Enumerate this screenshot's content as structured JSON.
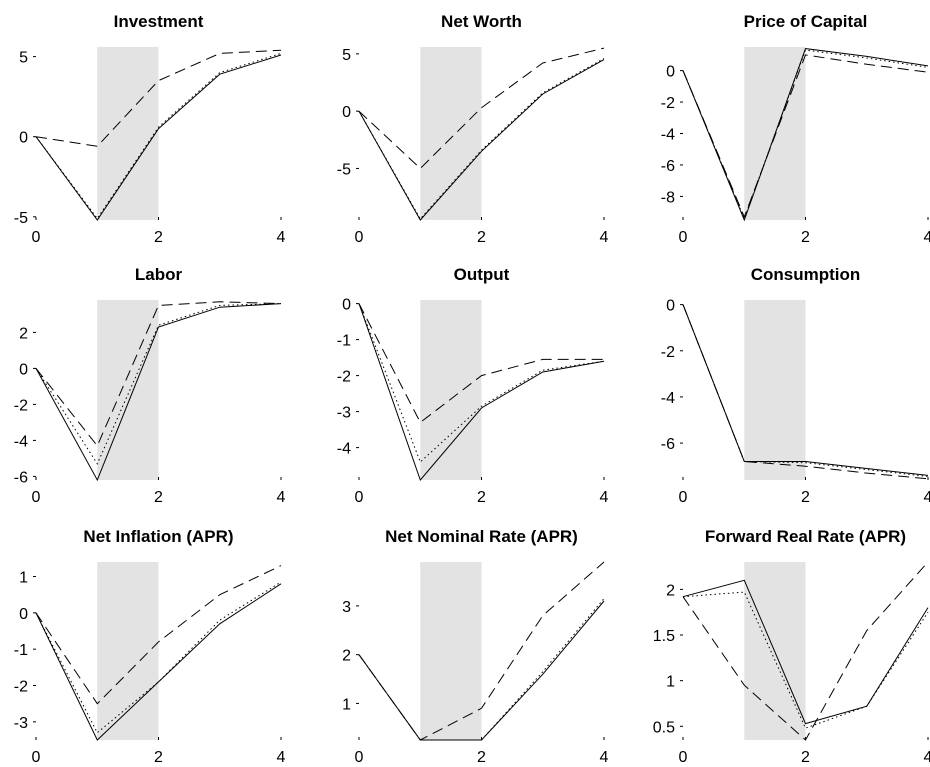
{
  "chart_data": [
    {
      "type": "line",
      "title": "Investment",
      "xlim": [
        0,
        4
      ],
      "ylim": [
        -5.2,
        5.6
      ],
      "xticks": [
        0,
        2,
        4
      ],
      "yticks": [
        -5,
        0,
        5
      ],
      "shade": [
        1,
        2
      ],
      "x": [
        0,
        1,
        2,
        3,
        4
      ],
      "series": [
        {
          "style": "solid",
          "values": [
            0,
            -5.2,
            0.5,
            3.9,
            5.1
          ]
        },
        {
          "style": "dotted",
          "values": [
            0,
            -5.1,
            0.6,
            4.0,
            5.2
          ]
        },
        {
          "style": "dashed",
          "values": [
            0,
            -0.6,
            3.5,
            5.2,
            5.4
          ]
        }
      ]
    },
    {
      "type": "line",
      "title": "Net Worth",
      "xlim": [
        0,
        4
      ],
      "ylim": [
        -9.5,
        5.6
      ],
      "xticks": [
        0,
        2,
        4
      ],
      "yticks": [
        -5,
        0,
        5
      ],
      "shade": [
        1,
        2
      ],
      "x": [
        0,
        1,
        2,
        3,
        4
      ],
      "series": [
        {
          "style": "solid",
          "values": [
            0,
            -9.5,
            -3.5,
            1.5,
            4.5
          ]
        },
        {
          "style": "dotted",
          "values": [
            0,
            -9.4,
            -3.4,
            1.6,
            4.6
          ]
        },
        {
          "style": "dashed",
          "values": [
            0,
            -5.0,
            0.3,
            4.2,
            5.5
          ]
        }
      ]
    },
    {
      "type": "line",
      "title": "Price of Capital",
      "xlim": [
        0,
        4
      ],
      "ylim": [
        -9.5,
        1.5
      ],
      "xticks": [
        0,
        2,
        4
      ],
      "yticks": [
        -8,
        -6,
        -4,
        -2,
        0
      ],
      "shade": [
        1,
        2
      ],
      "x": [
        0,
        1,
        2,
        3,
        4
      ],
      "series": [
        {
          "style": "solid",
          "values": [
            0,
            -9.5,
            1.4,
            0.9,
            0.3
          ]
        },
        {
          "style": "dotted",
          "values": [
            0,
            -9.4,
            1.3,
            0.8,
            0.2
          ]
        },
        {
          "style": "dashed",
          "values": [
            0,
            -9.3,
            1.0,
            0.4,
            -0.1
          ]
        }
      ]
    },
    {
      "type": "line",
      "title": "Labor",
      "xlim": [
        0,
        4
      ],
      "ylim": [
        -6.2,
        3.8
      ],
      "xticks": [
        0,
        2,
        4
      ],
      "yticks": [
        -6,
        -4,
        -2,
        0,
        2
      ],
      "shade": [
        1,
        2
      ],
      "x": [
        0,
        1,
        2,
        3,
        4
      ],
      "series": [
        {
          "style": "solid",
          "values": [
            0,
            -6.2,
            2.3,
            3.4,
            3.6
          ]
        },
        {
          "style": "dotted",
          "values": [
            0,
            -5.3,
            2.4,
            3.5,
            3.6
          ]
        },
        {
          "style": "dashed",
          "values": [
            0,
            -4.3,
            3.5,
            3.7,
            3.6
          ]
        }
      ]
    },
    {
      "type": "line",
      "title": "Output",
      "xlim": [
        0,
        4
      ],
      "ylim": [
        -4.9,
        0.1
      ],
      "xticks": [
        0,
        2,
        4
      ],
      "yticks": [
        -4,
        -3,
        -2,
        -1,
        0
      ],
      "shade": [
        1,
        2
      ],
      "x": [
        0,
        1,
        2,
        3,
        4
      ],
      "series": [
        {
          "style": "solid",
          "values": [
            0,
            -4.9,
            -2.9,
            -1.9,
            -1.6
          ]
        },
        {
          "style": "dotted",
          "values": [
            0,
            -4.4,
            -2.85,
            -1.85,
            -1.6
          ]
        },
        {
          "style": "dashed",
          "values": [
            0,
            -3.3,
            -2.0,
            -1.55,
            -1.55
          ]
        }
      ]
    },
    {
      "type": "line",
      "title": "Consumption",
      "xlim": [
        0,
        4
      ],
      "ylim": [
        -7.6,
        0.2
      ],
      "xticks": [
        0,
        2,
        4
      ],
      "yticks": [
        -6,
        -4,
        -2,
        0
      ],
      "shade": [
        1,
        2
      ],
      "x": [
        0,
        1,
        2,
        3,
        4
      ],
      "series": [
        {
          "style": "solid",
          "values": [
            0,
            -6.8,
            -6.8,
            -7.1,
            -7.4
          ]
        },
        {
          "style": "dotted",
          "values": [
            0,
            -6.8,
            -6.85,
            -7.15,
            -7.45
          ]
        },
        {
          "style": "dashed",
          "values": [
            0,
            -6.8,
            -7.0,
            -7.3,
            -7.55
          ]
        }
      ]
    },
    {
      "type": "line",
      "title": "Net Inflation (APR)",
      "xlim": [
        0,
        4
      ],
      "ylim": [
        -3.5,
        1.4
      ],
      "xticks": [
        0,
        2,
        4
      ],
      "yticks": [
        -3,
        -2,
        -1,
        0,
        1
      ],
      "shade": [
        1,
        2
      ],
      "x": [
        0,
        1,
        2,
        3,
        4
      ],
      "series": [
        {
          "style": "solid",
          "values": [
            0,
            -3.5,
            -1.9,
            -0.3,
            0.8
          ]
        },
        {
          "style": "dotted",
          "values": [
            0,
            -3.3,
            -1.9,
            -0.2,
            0.85
          ]
        },
        {
          "style": "dashed",
          "values": [
            0,
            -2.5,
            -0.8,
            0.5,
            1.3
          ]
        }
      ]
    },
    {
      "type": "line",
      "title": "Net Nominal Rate (APR)",
      "xlim": [
        0,
        4
      ],
      "ylim": [
        0.25,
        3.9
      ],
      "xticks": [
        0,
        2,
        4
      ],
      "yticks": [
        1,
        2,
        3
      ],
      "shade": [
        1,
        2
      ],
      "x": [
        0,
        1,
        2,
        3,
        4
      ],
      "series": [
        {
          "style": "solid",
          "values": [
            2.0,
            0.25,
            0.25,
            1.6,
            3.1
          ]
        },
        {
          "style": "dotted",
          "values": [
            2.0,
            0.25,
            0.25,
            1.65,
            3.15
          ]
        },
        {
          "style": "dashed",
          "values": [
            2.0,
            0.25,
            0.9,
            2.8,
            3.9
          ]
        }
      ]
    },
    {
      "type": "line",
      "title": "Forward Real Rate (APR)",
      "xlim": [
        0,
        4
      ],
      "ylim": [
        0.35,
        2.3
      ],
      "xticks": [
        0,
        2,
        4
      ],
      "yticks": [
        0.5,
        1,
        1.5,
        2
      ],
      "shade": [
        1,
        2
      ],
      "x": [
        0,
        1,
        2,
        3,
        4
      ],
      "series": [
        {
          "style": "solid",
          "values": [
            1.92,
            2.1,
            0.53,
            0.72,
            1.8
          ]
        },
        {
          "style": "dotted",
          "values": [
            1.92,
            1.97,
            0.48,
            0.72,
            1.75
          ]
        },
        {
          "style": "dashed",
          "values": [
            1.92,
            0.95,
            0.35,
            1.55,
            2.3
          ]
        }
      ]
    }
  ]
}
